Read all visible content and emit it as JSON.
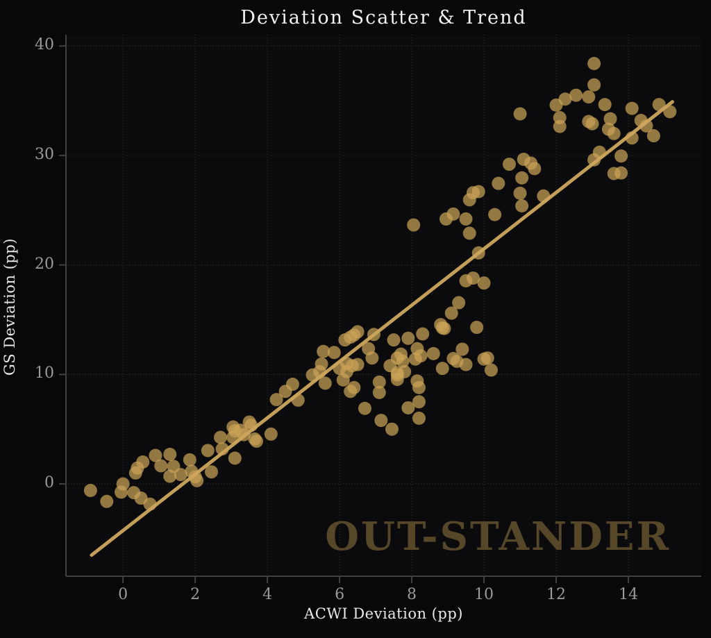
{
  "chart_data": {
    "type": "scatter",
    "title": "Deviation Scatter & Trend",
    "xlabel": "ACWI Deviation (pp)",
    "ylabel": "GS Deviation (pp)",
    "watermark": "OUT-STANDER",
    "xlim": [
      -1.58,
      16.02
    ],
    "ylim": [
      -8.43,
      41.03
    ],
    "xticks": [
      0,
      2,
      4,
      6,
      8,
      10,
      12,
      14
    ],
    "yticks": [
      0,
      10,
      20,
      30,
      40
    ],
    "grid": true,
    "legend": "none",
    "marker_radius": 9.5,
    "colors": {
      "background": "#08080a",
      "marker": "#c9a256",
      "trend": "#cda65e",
      "grid": "#34322a",
      "spine": "#414141",
      "tick_label": "#9b9b9b",
      "title": "#f3f3f3",
      "axis_label": "#e8e8e8",
      "watermark": "#564729"
    },
    "trend": {
      "x1": -0.87,
      "y1": -6.5,
      "x2": 15.22,
      "y2": 34.9
    },
    "points": [
      [
        -0.9,
        -0.6
      ],
      [
        -0.45,
        -1.6
      ],
      [
        0.0,
        0.0
      ],
      [
        -0.05,
        -0.75
      ],
      [
        0.3,
        -0.8
      ],
      [
        0.35,
        1.0
      ],
      [
        0.4,
        1.45
      ],
      [
        0.5,
        -1.3
      ],
      [
        0.55,
        2.0
      ],
      [
        0.75,
        -1.85
      ],
      [
        0.9,
        2.6
      ],
      [
        1.05,
        1.65
      ],
      [
        1.3,
        2.7
      ],
      [
        1.4,
        1.6
      ],
      [
        1.3,
        0.7
      ],
      [
        1.6,
        0.85
      ],
      [
        1.85,
        2.2
      ],
      [
        1.9,
        1.15
      ],
      [
        2.0,
        0.65
      ],
      [
        2.05,
        0.3
      ],
      [
        2.35,
        3.05
      ],
      [
        2.45,
        1.1
      ],
      [
        2.7,
        4.25
      ],
      [
        2.75,
        3.2
      ],
      [
        3.05,
        5.2
      ],
      [
        3.1,
        4.85
      ],
      [
        3.05,
        4.25
      ],
      [
        3.25,
        4.9
      ],
      [
        3.35,
        4.5
      ],
      [
        3.5,
        5.65
      ],
      [
        3.55,
        5.35
      ],
      [
        3.65,
        4.1
      ],
      [
        3.7,
        3.9
      ],
      [
        3.1,
        2.35
      ],
      [
        4.1,
        4.55
      ],
      [
        4.25,
        7.7
      ],
      [
        4.5,
        8.45
      ],
      [
        4.7,
        9.1
      ],
      [
        4.85,
        7.65
      ],
      [
        5.25,
        9.95
      ],
      [
        5.45,
        10.25
      ],
      [
        5.5,
        10.95
      ],
      [
        5.6,
        9.2
      ],
      [
        6.1,
        9.5
      ],
      [
        6.2,
        10.25
      ],
      [
        6.4,
        8.8
      ],
      [
        6.3,
        8.45
      ],
      [
        6.5,
        10.9
      ],
      [
        6.7,
        6.9
      ],
      [
        7.1,
        9.3
      ],
      [
        7.1,
        8.35
      ],
      [
        7.15,
        5.8
      ],
      [
        7.45,
        5.0
      ],
      [
        7.6,
        10.15
      ],
      [
        7.8,
        10.25
      ],
      [
        5.55,
        12.1
      ],
      [
        5.85,
        12.0
      ],
      [
        6.15,
        13.15
      ],
      [
        6.3,
        13.4
      ],
      [
        6.4,
        13.6
      ],
      [
        6.5,
        13.9
      ],
      [
        6.95,
        13.65
      ],
      [
        6.8,
        12.35
      ],
      [
        6.9,
        11.5
      ],
      [
        6.2,
        11.0
      ],
      [
        6.35,
        10.8
      ],
      [
        6.0,
        10.55
      ],
      [
        7.5,
        13.15
      ],
      [
        7.7,
        11.85
      ],
      [
        7.6,
        11.5
      ],
      [
        7.75,
        11.2
      ],
      [
        7.4,
        10.8
      ],
      [
        7.6,
        9.95
      ],
      [
        7.6,
        9.55
      ],
      [
        7.9,
        13.3
      ],
      [
        8.3,
        13.7
      ],
      [
        8.15,
        12.35
      ],
      [
        8.25,
        11.7
      ],
      [
        8.1,
        11.4
      ],
      [
        8.6,
        11.9
      ],
      [
        8.8,
        14.55
      ],
      [
        8.85,
        14.25
      ],
      [
        8.9,
        14.2
      ],
      [
        9.1,
        15.6
      ],
      [
        9.3,
        16.55
      ],
      [
        9.4,
        12.3
      ],
      [
        9.15,
        11.45
      ],
      [
        9.25,
        11.2
      ],
      [
        9.5,
        10.9
      ],
      [
        8.85,
        10.55
      ],
      [
        8.15,
        9.4
      ],
      [
        8.2,
        8.8
      ],
      [
        8.2,
        7.5
      ],
      [
        7.9,
        6.95
      ],
      [
        8.2,
        6.0
      ],
      [
        9.8,
        14.3
      ],
      [
        10.1,
        11.5
      ],
      [
        10.0,
        11.4
      ],
      [
        10.2,
        10.4
      ],
      [
        9.5,
        18.55
      ],
      [
        9.7,
        18.8
      ],
      [
        10.0,
        18.35
      ],
      [
        8.05,
        23.65
      ],
      [
        8.95,
        24.2
      ],
      [
        9.15,
        24.65
      ],
      [
        9.5,
        24.2
      ],
      [
        9.6,
        25.95
      ],
      [
        9.85,
        26.7
      ],
      [
        9.7,
        26.6
      ],
      [
        10.3,
        24.6
      ],
      [
        10.4,
        27.45
      ],
      [
        10.7,
        29.2
      ],
      [
        11.1,
        29.65
      ],
      [
        11.3,
        29.3
      ],
      [
        11.4,
        28.8
      ],
      [
        11.05,
        27.95
      ],
      [
        11.0,
        26.55
      ],
      [
        11.05,
        25.4
      ],
      [
        11.65,
        26.3
      ],
      [
        9.6,
        22.9
      ],
      [
        9.85,
        21.1
      ],
      [
        11.0,
        33.8
      ],
      [
        13.05,
        38.4
      ],
      [
        13.05,
        36.45
      ],
      [
        12.55,
        35.5
      ],
      [
        12.9,
        35.35
      ],
      [
        12.25,
        35.15
      ],
      [
        12.0,
        34.6
      ],
      [
        13.35,
        34.65
      ],
      [
        14.1,
        34.3
      ],
      [
        14.85,
        34.65
      ],
      [
        15.15,
        34.0
      ],
      [
        12.1,
        33.45
      ],
      [
        12.9,
        33.1
      ],
      [
        13.0,
        32.9
      ],
      [
        12.1,
        32.65
      ],
      [
        13.5,
        33.35
      ],
      [
        13.45,
        32.4
      ],
      [
        13.6,
        32.0
      ],
      [
        14.35,
        33.2
      ],
      [
        14.5,
        32.7
      ],
      [
        14.7,
        31.8
      ],
      [
        14.1,
        31.6
      ],
      [
        13.2,
        30.3
      ],
      [
        13.05,
        29.6
      ],
      [
        13.8,
        29.95
      ],
      [
        13.6,
        28.35
      ],
      [
        13.8,
        28.4
      ]
    ]
  }
}
